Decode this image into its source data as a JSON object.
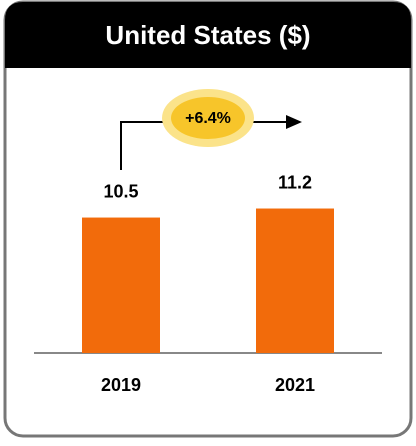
{
  "chart_data": {
    "type": "bar",
    "title": "United States ($)",
    "annotation": "+6.4%",
    "categories": [
      "2019",
      "2021"
    ],
    "values": [
      10.5,
      11.2
    ],
    "color": "#f26b0b"
  }
}
